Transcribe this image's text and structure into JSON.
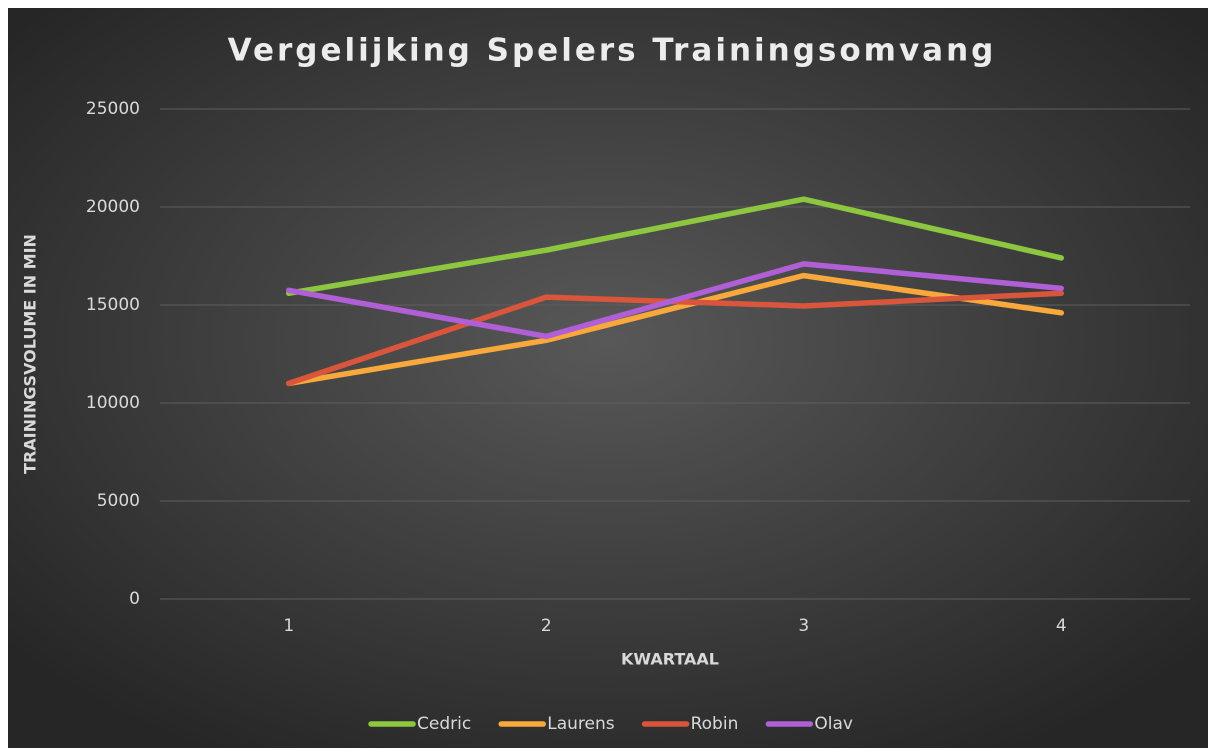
{
  "chart_data": {
    "type": "line",
    "title": "Vergelijking Spelers Trainingsomvang",
    "x_label": "KWARTAAL",
    "y_label": "TRAININGSVOLUME IN MIN",
    "categories": [
      "1",
      "2",
      "3",
      "4"
    ],
    "series": [
      {
        "name": "Cedric",
        "color": "#8dc63f",
        "values": [
          15600,
          17800,
          20400,
          17400
        ]
      },
      {
        "name": "Laurens",
        "color": "#f9a83c",
        "values": [
          11000,
          13200,
          16500,
          14600
        ]
      },
      {
        "name": "Robin",
        "color": "#d9553b",
        "values": [
          11000,
          15400,
          14950,
          15600
        ]
      },
      {
        "name": "Olav",
        "color": "#b05fd6",
        "values": [
          15750,
          13400,
          17100,
          15850
        ]
      }
    ],
    "ylim": [
      0,
      25000
    ],
    "yticks": [
      0,
      5000,
      10000,
      15000,
      20000,
      25000
    ],
    "grid": true,
    "legend": "bottom"
  }
}
